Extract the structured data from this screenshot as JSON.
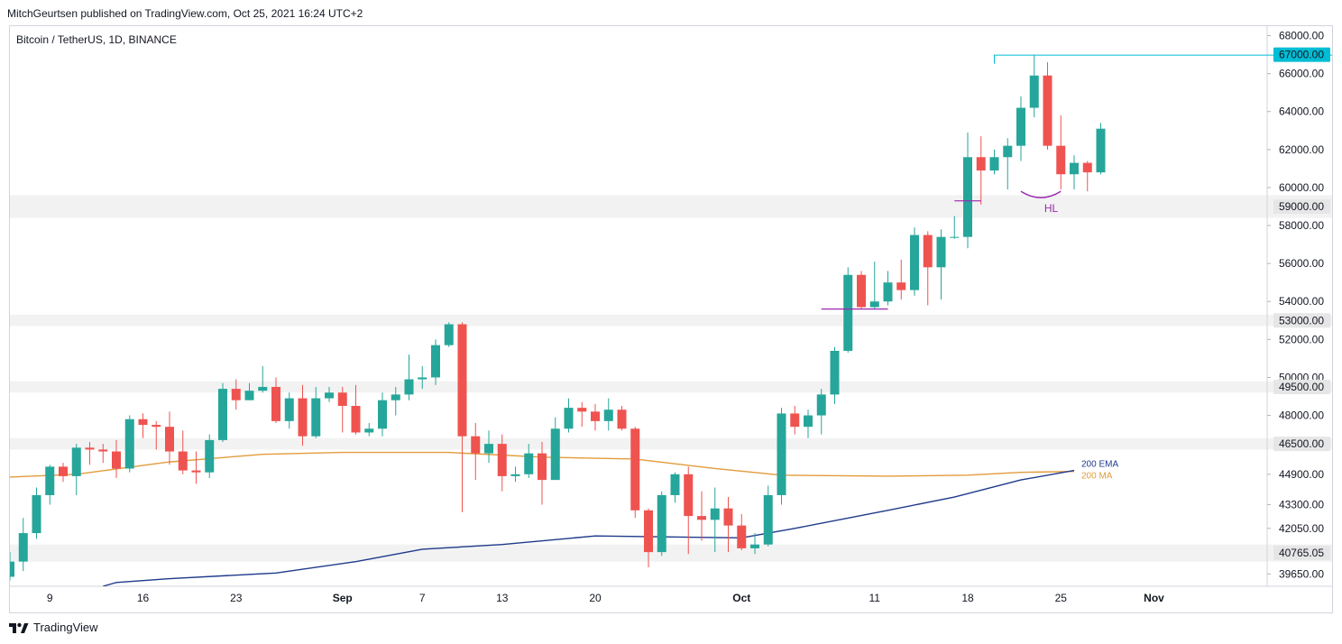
{
  "header": {
    "publisher_line": "MitchGeurtsen published on TradingView.com, Oct 25, 2021 16:24 UTC+2",
    "symbol_line": "Bitcoin / TetherUS, 1D, BINANCE"
  },
  "footer": {
    "brand": "TradingView",
    "logo_icon": "tradingview-logo-icon"
  },
  "chart_data": {
    "type": "candlestick",
    "title": "Bitcoin / TetherUS, 1D, BINANCE",
    "ylim": [
      39000,
      68500
    ],
    "price_axis_labels": [
      "68000.00",
      "66000.00",
      "64000.00",
      "62000.00",
      "60000.00",
      "58000.00",
      "56000.00",
      "54000.00",
      "52000.00",
      "50000.00",
      "48000.00",
      "44900.00",
      "43300.00",
      "42050.00",
      "39650.00"
    ],
    "highlighted_price_labels": [
      "67000.00",
      "59000.00",
      "53000.00",
      "49500.00",
      "46500.00",
      "40765.05"
    ],
    "highlight_label_color": "#e6e6e6",
    "highlight_cyan_color": "#00bcd4",
    "time_axis_labels": [
      {
        "label": "9",
        "index": 3
      },
      {
        "label": "16",
        "index": 10
      },
      {
        "label": "23",
        "index": 17
      },
      {
        "label": "Sep",
        "index": 25
      },
      {
        "label": "7",
        "index": 31
      },
      {
        "label": "13",
        "index": 37
      },
      {
        "label": "20",
        "index": 44
      },
      {
        "label": "Oct",
        "index": 55
      },
      {
        "label": "11",
        "index": 65
      },
      {
        "label": "18",
        "index": 72
      },
      {
        "label": "25",
        "index": 79
      },
      {
        "label": "Nov",
        "index": 86
      }
    ],
    "zones": [
      {
        "from": 58400,
        "to": 59600
      },
      {
        "from": 52700,
        "to": 53300
      },
      {
        "from": 49200,
        "to": 49800
      },
      {
        "from": 46200,
        "to": 46800
      },
      {
        "from": 40300,
        "to": 41200
      }
    ],
    "resistance_line": {
      "price": 67000,
      "from_index": 74,
      "color": "#00bcd4"
    },
    "annotations": [
      {
        "type": "line",
        "price": 53600,
        "from_index": 61,
        "to_index": 66,
        "color": "#9c27b0"
      },
      {
        "type": "line",
        "price": 59300,
        "from_index": 71,
        "to_index": 73,
        "color": "#9c27b0"
      },
      {
        "type": "arc",
        "price_low": 59800,
        "from_index": 76,
        "to_index": 79,
        "color": "#9c27b0"
      },
      {
        "type": "text",
        "text": "HL",
        "index": 78,
        "price": 58900,
        "color": "#9c27b0"
      }
    ],
    "up_color": "#26a69a",
    "down_color": "#ef5350",
    "candles": [
      [
        39500,
        40300,
        39300,
        40800
      ],
      [
        40300,
        41800,
        39800,
        42600
      ],
      [
        41800,
        43800,
        41500,
        44200
      ],
      [
        43800,
        45300,
        43300,
        45400
      ],
      [
        45300,
        44800,
        44500,
        45500
      ],
      [
        44800,
        46300,
        43800,
        46500
      ],
      [
        46300,
        46200,
        45400,
        46600
      ],
      [
        46200,
        46100,
        45500,
        46500
      ],
      [
        46100,
        45200,
        44700,
        46700
      ],
      [
        45200,
        47800,
        45000,
        48000
      ],
      [
        47800,
        47500,
        46800,
        48100
      ],
      [
        47500,
        47400,
        46200,
        47700
      ],
      [
        47400,
        46100,
        45400,
        48200
      ],
      [
        46100,
        45100,
        44900,
        47200
      ],
      [
        45100,
        45000,
        44400,
        46100
      ],
      [
        45000,
        46700,
        44700,
        47000
      ],
      [
        46700,
        49400,
        46600,
        49700
      ],
      [
        49400,
        48800,
        48300,
        49900
      ],
      [
        48800,
        49300,
        48800,
        49700
      ],
      [
        49300,
        49500,
        49200,
        50600
      ],
      [
        49500,
        47700,
        47600,
        50000
      ],
      [
        47700,
        48900,
        47300,
        49200
      ],
      [
        48900,
        46900,
        46400,
        49600
      ],
      [
        46900,
        48900,
        46800,
        49500
      ],
      [
        48900,
        49200,
        48700,
        49500
      ],
      [
        49200,
        48500,
        47100,
        49500
      ],
      [
        48500,
        47100,
        47000,
        49600
      ],
      [
        47100,
        47300,
        46900,
        47600
      ],
      [
        47300,
        48800,
        46900,
        49200
      ],
      [
        48800,
        49100,
        48000,
        49500
      ],
      [
        49100,
        49900,
        48800,
        51200
      ],
      [
        49900,
        50000,
        49400,
        50600
      ],
      [
        50000,
        51700,
        49600,
        52000
      ],
      [
        51700,
        52800,
        51600,
        52900
      ],
      [
        52800,
        46900,
        42900,
        52900
      ],
      [
        46900,
        46000,
        44600,
        47600
      ],
      [
        46000,
        46500,
        45500,
        47200
      ],
      [
        46500,
        44800,
        44000,
        47000
      ],
      [
        44800,
        44900,
        44500,
        45300
      ],
      [
        44900,
        46000,
        44700,
        46500
      ],
      [
        46000,
        44600,
        43300,
        46600
      ],
      [
        44600,
        47300,
        44600,
        47900
      ],
      [
        47300,
        48400,
        47100,
        48900
      ],
      [
        48400,
        48200,
        47400,
        48700
      ],
      [
        48200,
        47700,
        47200,
        48600
      ],
      [
        47700,
        48300,
        47200,
        48900
      ],
      [
        48300,
        47300,
        47200,
        48500
      ],
      [
        47300,
        43000,
        42600,
        47400
      ],
      [
        43000,
        40800,
        40000,
        43100
      ],
      [
        40800,
        43800,
        40600,
        44000
      ],
      [
        43800,
        44900,
        43400,
        45000
      ],
      [
        44900,
        42700,
        40700,
        45300
      ],
      [
        42700,
        42500,
        41400,
        44000
      ],
      [
        42500,
        43100,
        40800,
        44200
      ],
      [
        43100,
        42200,
        40800,
        43700
      ],
      [
        42200,
        41000,
        40900,
        42800
      ],
      [
        41000,
        41200,
        40700,
        41800
      ],
      [
        41200,
        43800,
        41100,
        44300
      ],
      [
        43800,
        48100,
        43300,
        48400
      ],
      [
        48100,
        47400,
        47000,
        48500
      ],
      [
        47400,
        48000,
        46800,
        48300
      ],
      [
        48000,
        49100,
        47000,
        49400
      ],
      [
        49100,
        51400,
        48600,
        51600
      ],
      [
        51400,
        55400,
        51300,
        55800
      ],
      [
        55400,
        53700,
        53600,
        55600
      ],
      [
        53700,
        54000,
        53600,
        56100
      ],
      [
        54000,
        55000,
        53800,
        55600
      ],
      [
        55000,
        54600,
        54100,
        56200
      ],
      [
        54600,
        57500,
        54300,
        57900
      ],
      [
        57500,
        55800,
        53800,
        57700
      ],
      [
        55800,
        57400,
        54100,
        57800
      ],
      [
        57400,
        57400,
        57300,
        58500
      ],
      [
        57400,
        61600,
        56800,
        62900
      ],
      [
        61600,
        60900,
        59100,
        62700
      ],
      [
        60900,
        61600,
        60700,
        62000
      ],
      [
        61600,
        62200,
        59900,
        62600
      ],
      [
        62200,
        64200,
        61400,
        64800
      ],
      [
        64200,
        65900,
        63700,
        67000
      ],
      [
        65900,
        62200,
        62000,
        66600
      ],
      [
        62200,
        60700,
        59900,
        63800
      ],
      [
        60700,
        61300,
        59900,
        61700
      ],
      [
        61300,
        60800,
        59800,
        61400
      ],
      [
        60800,
        63100,
        60700,
        63400
      ]
    ],
    "ema200": {
      "name": "200 EMA",
      "color": "#1e3a8a",
      "points": [
        [
          7,
          39000
        ],
        [
          8,
          39200
        ],
        [
          12,
          39400
        ],
        [
          20,
          39700
        ],
        [
          26,
          40300
        ],
        [
          31,
          40950
        ],
        [
          37,
          41200
        ],
        [
          44,
          41650
        ],
        [
          55,
          41550
        ],
        [
          59,
          42050
        ],
        [
          66,
          43000
        ],
        [
          71,
          43700
        ],
        [
          76,
          44600
        ],
        [
          80,
          45100
        ]
      ]
    },
    "ma200": {
      "name": "200 MA",
      "color": "#e39b3b",
      "points": [
        [
          0,
          44750
        ],
        [
          5,
          44900
        ],
        [
          12,
          45550
        ],
        [
          19,
          45950
        ],
        [
          25,
          46050
        ],
        [
          33,
          46050
        ],
        [
          40,
          45800
        ],
        [
          47,
          45700
        ],
        [
          53,
          45200
        ],
        [
          58,
          44850
        ],
        [
          66,
          44800
        ],
        [
          72,
          44850
        ],
        [
          76,
          45000
        ],
        [
          80,
          45050
        ]
      ]
    }
  }
}
